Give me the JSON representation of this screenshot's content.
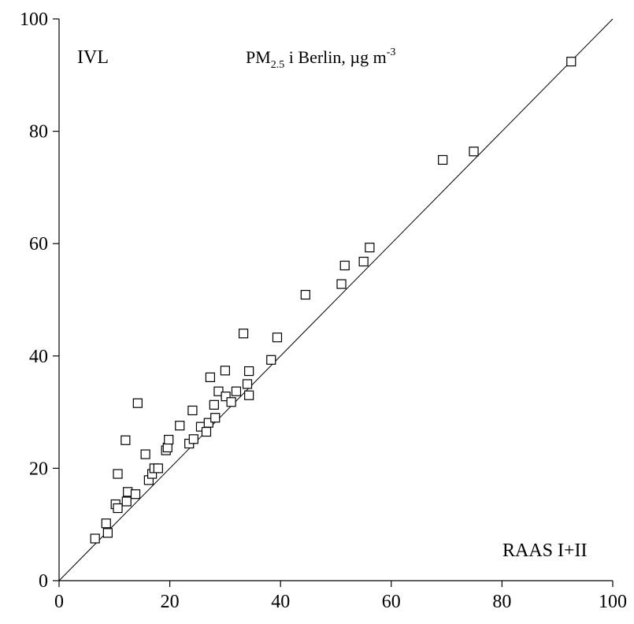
{
  "chart_data": {
    "type": "scatter",
    "title_parts": {
      "prefix": "PM",
      "subscript": "2.5",
      "middle": " i Berlin, µg m",
      "superscript": "-3"
    },
    "ylabel": "IVL",
    "xlabel": "RAAS I+II",
    "xlim": [
      0,
      100
    ],
    "ylim": [
      0,
      100
    ],
    "xticks": [
      0,
      20,
      40,
      60,
      80,
      100
    ],
    "yticks": [
      0,
      20,
      40,
      60,
      80,
      100
    ],
    "grid": false,
    "reference_line": "1:1",
    "marker": "open-square",
    "points": [
      [
        6.5,
        7.5
      ],
      [
        8.5,
        10.2
      ],
      [
        8.8,
        8.5
      ],
      [
        10.2,
        13.6
      ],
      [
        10.6,
        12.9
      ],
      [
        10.6,
        19.0
      ],
      [
        12.0,
        25.0
      ],
      [
        12.2,
        14.1
      ],
      [
        12.4,
        15.8
      ],
      [
        13.8,
        15.4
      ],
      [
        14.2,
        31.6
      ],
      [
        15.6,
        22.5
      ],
      [
        16.2,
        17.9
      ],
      [
        16.8,
        19.0
      ],
      [
        17.2,
        20.0
      ],
      [
        17.9,
        20.0
      ],
      [
        19.3,
        23.2
      ],
      [
        19.6,
        23.7
      ],
      [
        19.8,
        25.1
      ],
      [
        21.8,
        27.6
      ],
      [
        23.5,
        24.4
      ],
      [
        24.1,
        30.3
      ],
      [
        24.3,
        25.2
      ],
      [
        25.6,
        27.4
      ],
      [
        26.6,
        26.5
      ],
      [
        27.0,
        28.1
      ],
      [
        27.3,
        36.2
      ],
      [
        28.0,
        31.3
      ],
      [
        28.2,
        29.0
      ],
      [
        28.8,
        33.7
      ],
      [
        30.0,
        37.4
      ],
      [
        30.1,
        32.8
      ],
      [
        31.1,
        31.8
      ],
      [
        32.0,
        33.7
      ],
      [
        33.3,
        44.0
      ],
      [
        34.0,
        35.0
      ],
      [
        34.3,
        37.3
      ],
      [
        34.3,
        33.0
      ],
      [
        38.3,
        39.3
      ],
      [
        39.4,
        43.3
      ],
      [
        44.5,
        50.9
      ],
      [
        51.0,
        52.8
      ],
      [
        51.6,
        56.1
      ],
      [
        55.0,
        56.8
      ],
      [
        56.1,
        59.3
      ],
      [
        69.3,
        74.9
      ],
      [
        74.9,
        76.4
      ],
      [
        92.5,
        92.4
      ]
    ]
  }
}
